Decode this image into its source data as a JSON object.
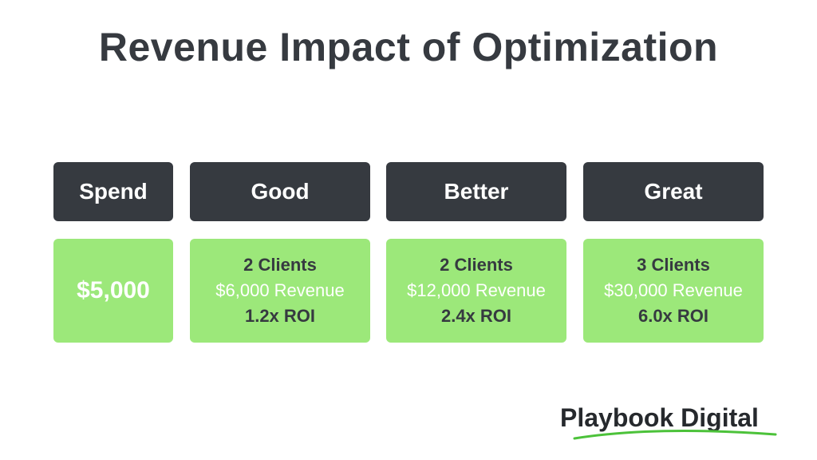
{
  "title": "Revenue Impact of Optimization",
  "columns": [
    {
      "header": "Spend",
      "value": "$5,000"
    },
    {
      "header": "Good",
      "clients": "2 Clients",
      "revenue": "$6,000 Revenue",
      "roi": "1.2x ROI"
    },
    {
      "header": "Better",
      "clients": "2 Clients",
      "revenue": "$12,000 Revenue",
      "roi": "2.4x ROI"
    },
    {
      "header": "Great",
      "clients": "3 Clients",
      "revenue": "$30,000 Revenue",
      "roi": "6.0x ROI"
    }
  ],
  "logo": {
    "text": "Playbook Digital",
    "swoosh_color": "#4cc23a"
  },
  "colors": {
    "header_bg": "#363a40",
    "value_bg": "#9ce87a",
    "title_text": "#363a40"
  }
}
